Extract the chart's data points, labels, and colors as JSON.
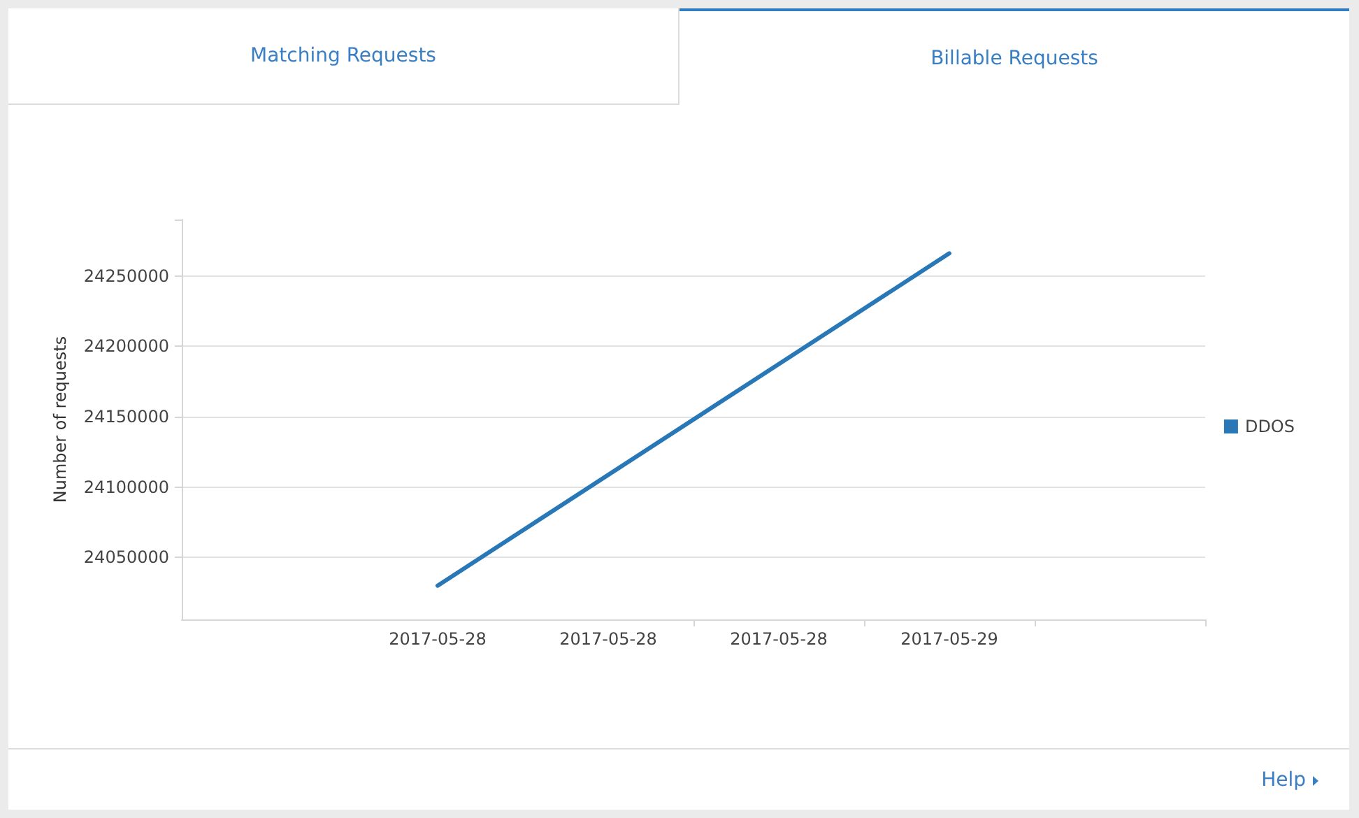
{
  "chart_data": {
    "type": "line",
    "title": "Billable Requests",
    "annotations": [
      "Matching Requests",
      "Help"
    ],
    "ylabel": "Number of requests",
    "x": [
      "2017-05-28T00:00",
      "2017-05-29T00:00"
    ],
    "series": [
      {
        "name": "DDOS",
        "color": "#2878b8",
        "values": [
          24030000,
          24266000
        ]
      }
    ],
    "xlim": [
      "2017-05-27T12:00",
      "2017-05-29T12:00"
    ],
    "xticks": [
      {
        "value": "2017-05-28T00:00",
        "label": "2017-05-28"
      },
      {
        "value": "2017-05-28T08:00",
        "label": "2017-05-28"
      },
      {
        "value": "2017-05-28T12:00",
        "label": null
      },
      {
        "value": "2017-05-28T16:00",
        "label": "2017-05-28"
      },
      {
        "value": "2017-05-28T20:00",
        "label": null
      },
      {
        "value": "2017-05-29T00:00",
        "label": "2017-05-29"
      },
      {
        "value": "2017-05-29T04:00",
        "label": null
      },
      {
        "value": "2017-05-29T12:00",
        "label": null
      }
    ],
    "ylim": [
      24006000,
      24290000
    ],
    "yticks": [
      24050000,
      24100000,
      24150000,
      24200000,
      24250000,
      {
        "value": 24290000,
        "label": null
      }
    ],
    "grid": "y",
    "legend": "right"
  }
}
